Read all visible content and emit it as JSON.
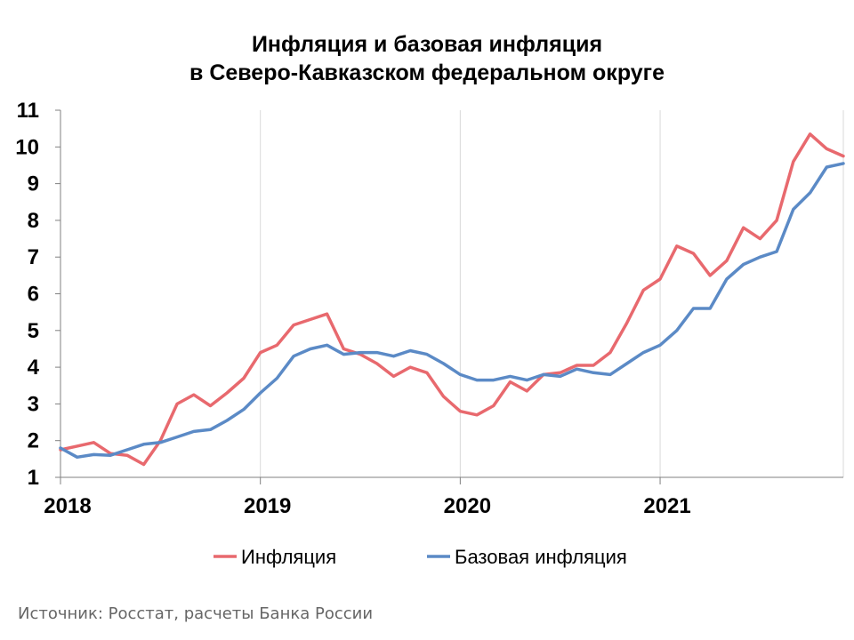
{
  "chart_data": {
    "type": "line",
    "title_line1": "Инфляция и базовая инфляция",
    "title_line2": "в Северо-Кавказском федеральном округе",
    "xlabel": "",
    "ylabel": "",
    "ylim": [
      1,
      11
    ],
    "yticks": [
      1,
      2,
      3,
      4,
      5,
      6,
      7,
      8,
      9,
      10,
      11
    ],
    "x_tick_labels": [
      "2018",
      "2019",
      "2020",
      "2021"
    ],
    "x_start": "2018-01",
    "x_end": "2021-12",
    "grid": "vertical",
    "legend_position": "bottom",
    "x": [
      "2018-01",
      "2018-02",
      "2018-03",
      "2018-04",
      "2018-05",
      "2018-06",
      "2018-07",
      "2018-08",
      "2018-09",
      "2018-10",
      "2018-11",
      "2018-12",
      "2019-01",
      "2019-02",
      "2019-03",
      "2019-04",
      "2019-05",
      "2019-06",
      "2019-07",
      "2019-08",
      "2019-09",
      "2019-10",
      "2019-11",
      "2019-12",
      "2020-01",
      "2020-02",
      "2020-03",
      "2020-04",
      "2020-05",
      "2020-06",
      "2020-07",
      "2020-08",
      "2020-09",
      "2020-10",
      "2020-11",
      "2020-12",
      "2021-01",
      "2021-02",
      "2021-03",
      "2021-04",
      "2021-05",
      "2021-06",
      "2021-07",
      "2021-08",
      "2021-09",
      "2021-10",
      "2021-11",
      "2021-12"
    ],
    "series": [
      {
        "name": "Инфляция",
        "color": "#e8696e",
        "values": [
          1.75,
          1.85,
          1.95,
          1.65,
          1.6,
          1.35,
          2.0,
          3.0,
          3.25,
          2.95,
          3.3,
          3.7,
          4.4,
          4.6,
          5.15,
          5.3,
          5.45,
          4.5,
          4.35,
          4.1,
          3.75,
          4.0,
          3.85,
          3.2,
          2.8,
          2.7,
          2.95,
          3.6,
          3.35,
          3.8,
          3.85,
          4.05,
          4.05,
          4.4,
          5.2,
          6.1,
          6.4,
          7.3,
          7.1,
          6.5,
          6.9,
          7.8,
          7.5,
          8.0,
          9.6,
          10.35,
          9.95,
          9.75
        ]
      },
      {
        "name": "Базовая инфляция",
        "color": "#5b8ac6",
        "values": [
          1.8,
          1.55,
          1.62,
          1.6,
          1.75,
          1.9,
          1.95,
          2.1,
          2.25,
          2.3,
          2.55,
          2.85,
          3.3,
          3.7,
          4.3,
          4.5,
          4.6,
          4.35,
          4.4,
          4.4,
          4.3,
          4.45,
          4.35,
          4.1,
          3.8,
          3.65,
          3.65,
          3.75,
          3.65,
          3.8,
          3.75,
          3.95,
          3.85,
          3.8,
          4.1,
          4.4,
          4.6,
          5.0,
          5.6,
          5.6,
          6.4,
          6.8,
          7.0,
          7.15,
          8.3,
          8.75,
          9.45,
          9.55
        ]
      }
    ]
  },
  "source_text": "Источник: Росстат, расчеты Банка России"
}
